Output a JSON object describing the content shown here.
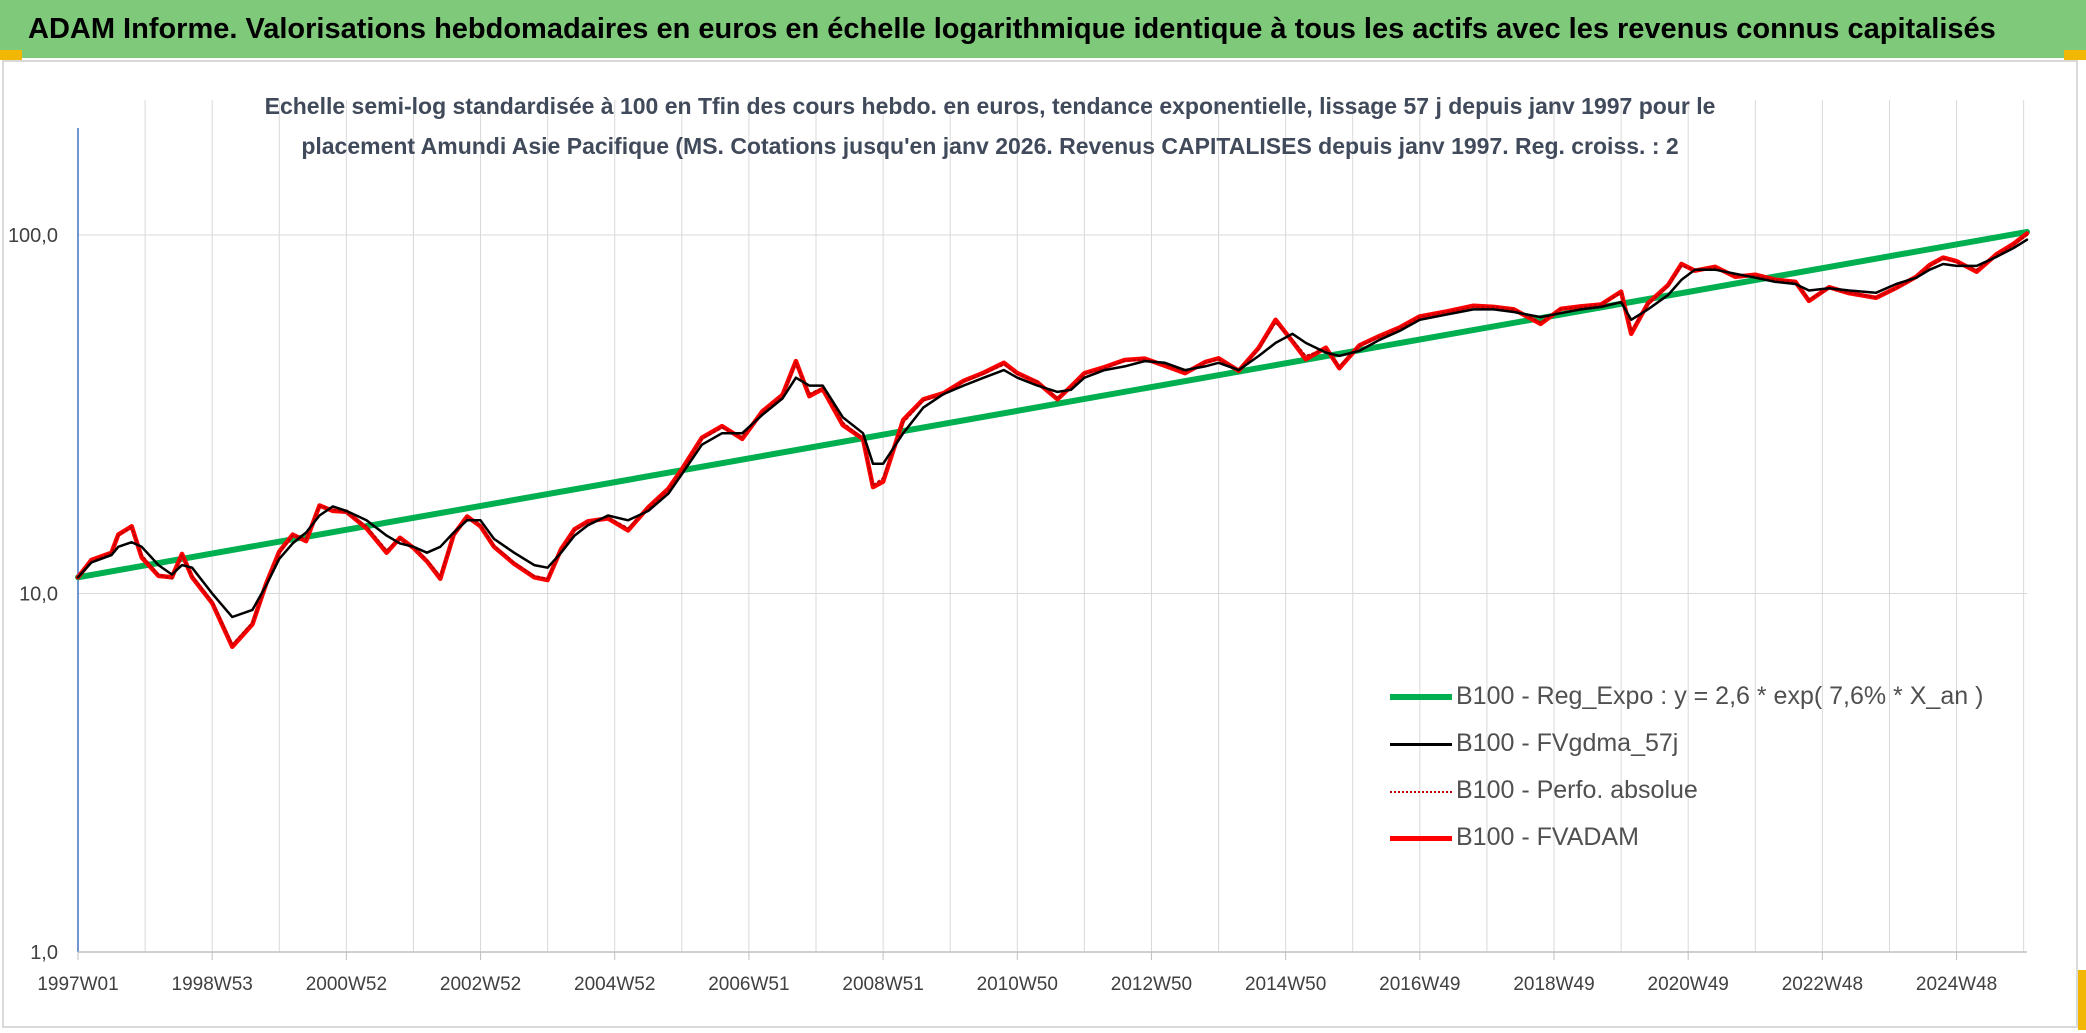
{
  "header": {
    "banner": "ADAM Informe. Valorisations hebdomadaires en euros en échelle logarithmique identique à tous les actifs avec les revenus connus capitalisés"
  },
  "colors": {
    "banner_bg": "#7fc97a",
    "regression": "#00b050",
    "moving_average": "#000000",
    "perf_absolue": "#c00000",
    "fvadam": "#ff0000",
    "grid": "#d9d9d9",
    "axis": "#4472c4",
    "corner_accent": "#f2b705"
  },
  "chart_data": {
    "type": "line",
    "title_line1": "Echelle semi-log standardisée à 100 en Tfin des cours hebdo. en euros, tendance exponentielle, lissage 57 j depuis janv 1997 pour le",
    "title_line2": "placement Amundi Asie Pacifique (MS. Cotations jusqu'en janv 2026. Revenus CAPITALISES depuis janv 1997. Reg. croiss. : 2",
    "y_scale": "log",
    "ylim": [
      1,
      200
    ],
    "y_ticks": [
      "1,0",
      "10,0",
      "100,0"
    ],
    "y_tick_values": [
      1,
      10,
      100
    ],
    "xlim": [
      1997.0,
      2026.05
    ],
    "x_ticks": [
      "1997W01",
      "1998W53",
      "2000W52",
      "2002W52",
      "2004W52",
      "2006W51",
      "2008W51",
      "2010W50",
      "2012W50",
      "2014W50",
      "2016W49",
      "2018W49",
      "2020W49",
      "2022W48",
      "2024W48"
    ],
    "x_tick_values": [
      1997.0,
      1999.0,
      2001.0,
      2003.0,
      2005.0,
      2007.0,
      2009.0,
      2011.0,
      2013.0,
      2015.0,
      2017.0,
      2019.0,
      2021.0,
      2023.0,
      2025.0
    ],
    "grid": true,
    "legend_position": "bottom-right",
    "legend": [
      "B100 - Reg_Expo : y = 2,6 * exp( 7,6% *  X_an )",
      "B100 - FVgdma_57j",
      "B100 - Perfo. absolue",
      "B100 - FVADAM"
    ],
    "x": [
      1997.0,
      1997.2,
      1997.5,
      1997.6,
      1997.8,
      1997.95,
      1998.2,
      1998.4,
      1998.55,
      1998.7,
      1999.0,
      1999.3,
      1999.6,
      1999.8,
      2000.0,
      2000.2,
      2000.4,
      2000.6,
      2000.8,
      2001.0,
      2001.3,
      2001.6,
      2001.8,
      2002.0,
      2002.2,
      2002.4,
      2002.6,
      2002.8,
      2003.0,
      2003.2,
      2003.5,
      2003.8,
      2004.0,
      2004.2,
      2004.4,
      2004.6,
      2004.9,
      2005.2,
      2005.5,
      2005.8,
      2006.0,
      2006.3,
      2006.6,
      2006.9,
      2007.2,
      2007.5,
      2007.7,
      2007.9,
      2008.1,
      2008.4,
      2008.7,
      2008.85,
      2009.0,
      2009.3,
      2009.6,
      2009.9,
      2010.2,
      2010.5,
      2010.8,
      2011.0,
      2011.3,
      2011.6,
      2011.8,
      2012.0,
      2012.3,
      2012.6,
      2012.9,
      2013.2,
      2013.5,
      2013.8,
      2014.0,
      2014.3,
      2014.6,
      2014.85,
      2015.1,
      2015.3,
      2015.6,
      2015.8,
      2016.1,
      2016.4,
      2016.7,
      2017.0,
      2017.4,
      2017.8,
      2018.1,
      2018.4,
      2018.8,
      2019.1,
      2019.4,
      2019.7,
      2020.0,
      2020.15,
      2020.4,
      2020.7,
      2020.9,
      2021.1,
      2021.4,
      2021.7,
      2022.0,
      2022.3,
      2022.6,
      2022.8,
      2023.1,
      2023.4,
      2023.8,
      2024.1,
      2024.4,
      2024.6,
      2024.8,
      2025.0,
      2025.3,
      2025.6,
      2025.85,
      2026.05
    ],
    "series": [
      {
        "name": "B100 - Reg_Expo : y = 2,6 * exp( 7,6% *  X_an )",
        "x": [
          1997.0,
          2026.05
        ],
        "values": [
          11.1,
          102.0
        ]
      },
      {
        "name": "B100 - FVgdma_57j",
        "values": [
          11.1,
          12.2,
          12.8,
          13.5,
          13.9,
          13.5,
          12.0,
          11.3,
          12.0,
          11.8,
          10.0,
          8.6,
          9.0,
          10.5,
          12.5,
          13.8,
          14.8,
          16.5,
          17.5,
          17.0,
          16.0,
          14.5,
          13.8,
          13.5,
          13.0,
          13.5,
          14.8,
          16.0,
          16.0,
          14.2,
          13.0,
          12.0,
          11.8,
          13.0,
          14.5,
          15.5,
          16.5,
          16.0,
          17.0,
          19.0,
          21.5,
          26.0,
          28.0,
          28.0,
          31.5,
          35.0,
          40.0,
          38.0,
          38.0,
          31.0,
          28.0,
          23.0,
          23.0,
          28.0,
          33.0,
          36.0,
          38.0,
          40.0,
          42.0,
          40.0,
          38.0,
          36.5,
          37.0,
          40.0,
          42.0,
          43.0,
          44.5,
          44.0,
          42.0,
          43.0,
          44.0,
          42.0,
          46.0,
          50.0,
          53.0,
          50.0,
          47.0,
          46.0,
          47.5,
          51.0,
          54.0,
          58.0,
          60.0,
          62.0,
          62.0,
          61.0,
          59.0,
          60.5,
          62.0,
          63.0,
          65.0,
          58.0,
          62.0,
          68.0,
          75.0,
          80.0,
          80.0,
          78.0,
          76.0,
          74.0,
          73.0,
          70.0,
          71.0,
          70.0,
          69.0,
          73.0,
          76.0,
          80.0,
          83.0,
          82.0,
          82.0,
          87.0,
          92.0,
          97.0
        ]
      },
      {
        "name": "B100 - Perfo. absolue",
        "values": [
          11.1,
          12.3,
          13.0,
          14.5,
          15.3,
          12.8,
          11.3,
          11.0,
          12.8,
          11.2,
          9.5,
          7.2,
          8.3,
          10.5,
          13.0,
          14.5,
          14.2,
          17.5,
          17.2,
          16.8,
          15.4,
          13.2,
          14.2,
          13.5,
          12.4,
          11.2,
          14.5,
          16.3,
          15.5,
          13.6,
          12.2,
          11.2,
          11.0,
          13.2,
          15.0,
          15.8,
          16.3,
          15.2,
          17.3,
          19.5,
          22.0,
          27.0,
          29.0,
          27.3,
          32.0,
          35.5,
          44.0,
          36.0,
          37.5,
          30.0,
          27.0,
          20.0,
          21.0,
          30.0,
          34.5,
          36.0,
          39.0,
          41.0,
          43.5,
          41.0,
          39.0,
          35.0,
          37.5,
          41.0,
          42.5,
          44.5,
          45.0,
          43.5,
          41.5,
          44.0,
          45.0,
          42.0,
          48.0,
          57.0,
          51.0,
          46.0,
          48.0,
          43.0,
          49.0,
          52.0,
          55.0,
          59.0,
          61.0,
          63.0,
          63.0,
          62.0,
          57.0,
          62.0,
          63.0,
          64.0,
          69.0,
          54.0,
          64.0,
          72.0,
          82.0,
          80.0,
          81.0,
          77.0,
          77.0,
          75.0,
          74.0,
          66.0,
          71.0,
          69.0,
          67.0,
          71.0,
          76.0,
          82.0,
          86.0,
          84.0,
          80.0,
          88.0,
          94.0,
          100.0
        ]
      },
      {
        "name": "B100 - FVADAM",
        "values": [
          11.1,
          12.4,
          13.0,
          14.6,
          15.4,
          12.6,
          11.2,
          11.1,
          12.9,
          11.1,
          9.4,
          7.1,
          8.2,
          10.6,
          13.1,
          14.6,
          14.0,
          17.6,
          17.0,
          16.9,
          15.2,
          13.0,
          14.3,
          13.4,
          12.3,
          11.0,
          14.6,
          16.4,
          15.4,
          13.5,
          12.1,
          11.1,
          10.9,
          13.3,
          15.1,
          15.9,
          16.2,
          15.0,
          17.4,
          19.6,
          22.2,
          27.2,
          29.3,
          27.0,
          32.2,
          35.8,
          44.5,
          35.5,
          37.2,
          29.5,
          27.0,
          19.8,
          20.5,
          30.5,
          34.8,
          36.2,
          39.2,
          41.3,
          44.0,
          41.2,
          38.8,
          34.8,
          37.8,
          41.2,
          42.8,
          44.8,
          45.2,
          43.2,
          41.2,
          44.2,
          45.3,
          41.8,
          48.5,
          58.0,
          50.5,
          45.0,
          48.5,
          42.5,
          49.2,
          52.3,
          55.2,
          59.3,
          61.2,
          63.5,
          63.0,
          62.0,
          56.5,
          62.2,
          63.2,
          64.0,
          69.5,
          53.0,
          64.5,
          72.5,
          83.0,
          79.5,
          81.5,
          76.5,
          77.5,
          75.0,
          74.0,
          65.5,
          71.5,
          68.8,
          66.8,
          71.2,
          76.5,
          82.5,
          86.5,
          84.5,
          79.0,
          88.5,
          94.5,
          101.0
        ]
      }
    ]
  }
}
